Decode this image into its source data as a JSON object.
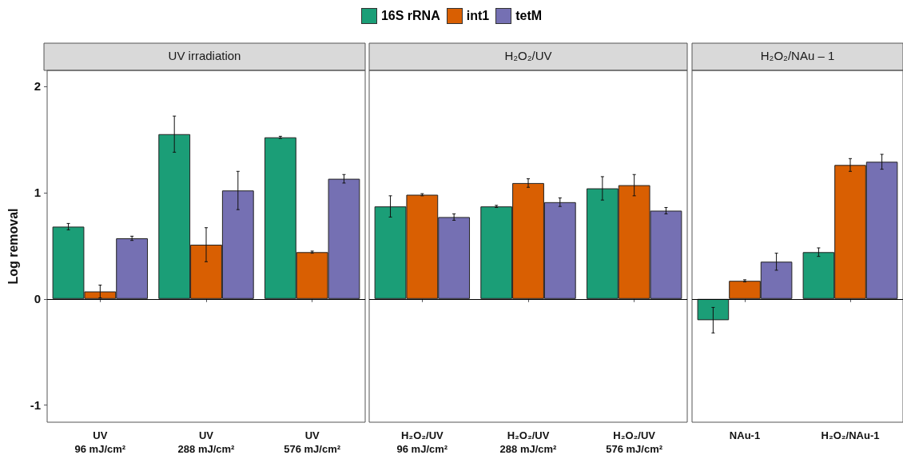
{
  "chart_data": [
    {
      "type": "bar",
      "title": "UV irradiation",
      "ylabel": "Log removal",
      "categories": [
        "UV\n96 mJ/cm²",
        "UV\n288 mJ/cm²",
        "UV\n576 mJ/cm²"
      ],
      "series": [
        {
          "name": "16S rRNA",
          "color": "#1b9e77",
          "values": [
            0.68,
            1.55,
            1.52
          ],
          "errors": [
            0.03,
            0.17,
            0.01
          ]
        },
        {
          "name": "int1",
          "color": "#d95f02",
          "values": [
            0.07,
            0.51,
            0.44
          ],
          "errors": [
            0.06,
            0.16,
            0.01
          ]
        },
        {
          "name": "tetM",
          "color": "#7570b3",
          "values": [
            0.57,
            1.02,
            1.13
          ],
          "errors": [
            0.02,
            0.18,
            0.04
          ]
        }
      ],
      "ylim": [
        -1.16,
        2.15
      ],
      "yticks": [
        -1,
        0,
        1,
        2
      ],
      "grid": false,
      "legend": "top",
      "ref_lines": [
        {
          "axis": "y",
          "value": 0,
          "color": "#000000"
        }
      ]
    },
    {
      "type": "bar",
      "title": "H₂O₂/UV",
      "categories": [
        "H₂O₂/UV\n96 mJ/cm²",
        "H₂O₂/UV\n288 mJ/cm²",
        "H₂O₂/UV\n576 mJ/cm²"
      ],
      "series": [
        {
          "color": "#1b9e77",
          "values": [
            0.87,
            0.87,
            1.04
          ],
          "errors": [
            0.1,
            0.01,
            0.11
          ]
        },
        {
          "color": "#d95f02",
          "values": [
            0.98,
            1.09,
            1.07
          ],
          "errors": [
            0.01,
            0.04,
            0.1
          ]
        },
        {
          "color": "#7570b3",
          "values": [
            0.77,
            0.91,
            0.83
          ],
          "errors": [
            0.03,
            0.04,
            0.03
          ]
        }
      ],
      "ylim": [
        -1.16,
        2.15
      ],
      "yticks": [
        -1,
        0,
        1,
        2
      ],
      "grid": false,
      "tick_labels": "x",
      "ref_lines": [
        {
          "axis": "y",
          "value": 0,
          "color": "#000000"
        }
      ]
    },
    {
      "type": "bar",
      "title": "H₂O₂/NAu – 1",
      "categories": [
        "NAu-1",
        "H₂O₂/NAu-1"
      ],
      "series": [
        {
          "color": "#1b9e77",
          "values": [
            -0.2,
            0.44
          ],
          "errors": [
            0.12,
            0.04
          ]
        },
        {
          "color": "#d95f02",
          "values": [
            0.17,
            1.26
          ],
          "errors": [
            0.01,
            0.06
          ]
        },
        {
          "color": "#7570b3",
          "values": [
            0.35,
            1.29
          ],
          "errors": [
            0.08,
            0.07
          ]
        }
      ],
      "ylim": [
        -1.16,
        2.15
      ],
      "yticks": [
        -1,
        0,
        1,
        2
      ],
      "grid": false,
      "tick_labels": "x",
      "ref_lines": [
        {
          "axis": "y",
          "value": 0,
          "color": "#000000"
        }
      ]
    }
  ]
}
